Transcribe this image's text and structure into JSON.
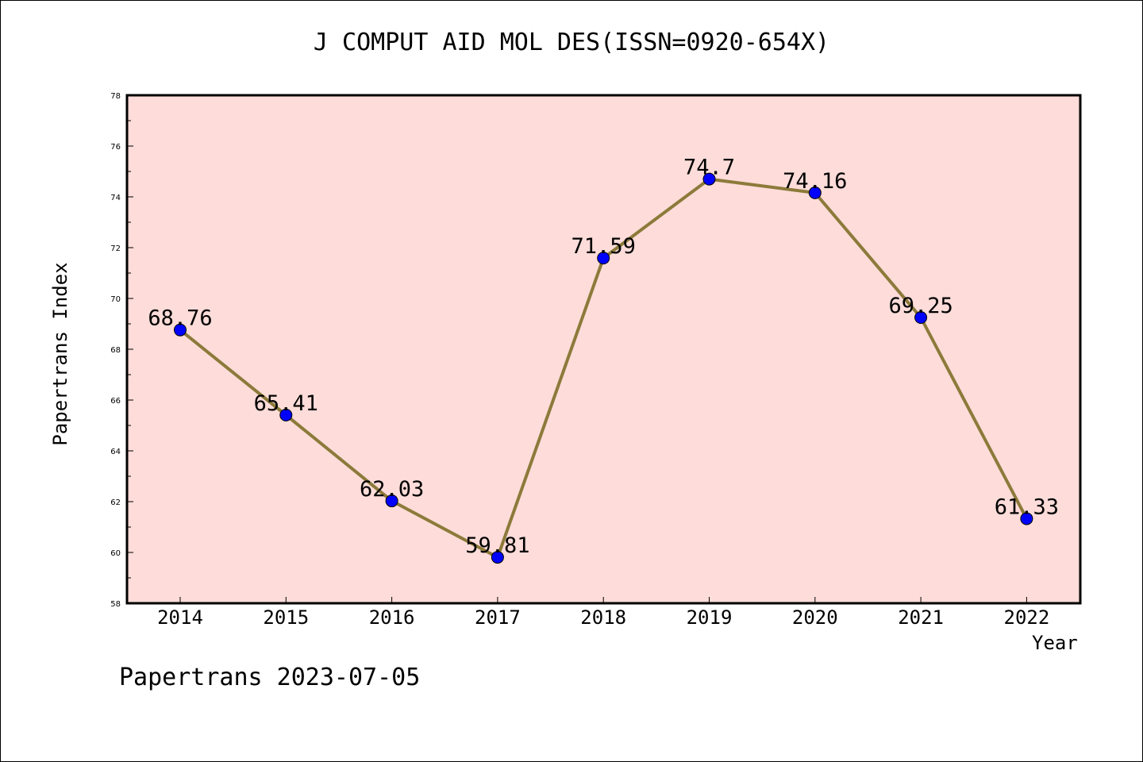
{
  "chart_data": {
    "type": "line",
    "title": "J COMPUT AID MOL DES(ISSN=0920-654X)",
    "xlabel": "Year",
    "ylabel": "Papertrans Index",
    "categories": [
      "2014",
      "2015",
      "2016",
      "2017",
      "2018",
      "2019",
      "2020",
      "2021",
      "2022"
    ],
    "series": [
      {
        "values": [
          68.76,
          65.41,
          62.03,
          59.81,
          71.59,
          74.7,
          74.16,
          69.25,
          61.33
        ],
        "labels": [
          "68.76",
          "65.41",
          "62.03",
          "59.81",
          "71.59",
          "74.7",
          "74.16",
          "69.25",
          "61.33"
        ]
      }
    ],
    "ylim": [
      58,
      78
    ],
    "yticks": [
      "58",
      "60",
      "62",
      "64",
      "66",
      "68",
      "70",
      "72",
      "74",
      "76",
      "78"
    ],
    "grid": false,
    "legend": "none",
    "colors": {
      "plot_background": "#fddcd9",
      "line": "#8c7a3a",
      "marker": "#0000ff"
    }
  },
  "footer": "Papertrans 2023-07-05"
}
